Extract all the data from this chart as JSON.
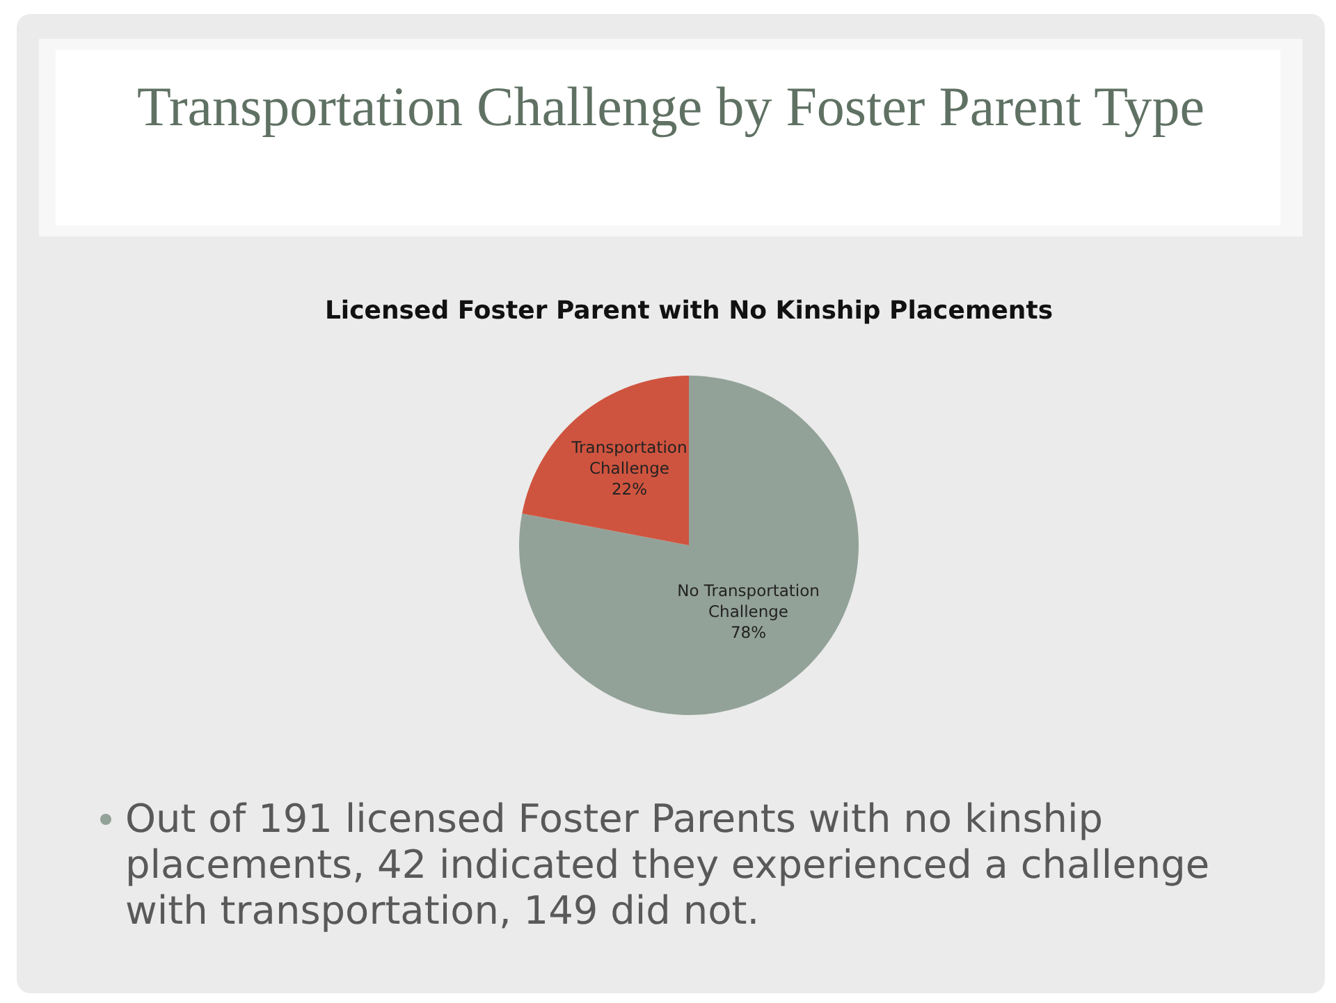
{
  "chart_data": {
    "type": "pie",
    "title": "Transportation Challenge by Foster Parent Type",
    "subtitle": "Licensed Foster Parent with No Kinship Placements",
    "categories": [
      "No Transportation Challenge",
      "Transportation Challenge"
    ],
    "values": [
      78,
      22
    ],
    "colors": [
      "#93a299",
      "#cf543f"
    ],
    "value_labels": [
      "78%",
      "22%"
    ],
    "annotations": [
      "Out of 191 licensed Foster Parents with no kinship placements, 42 indicated they experienced a challenge with transportation, 149 did not."
    ]
  }
}
